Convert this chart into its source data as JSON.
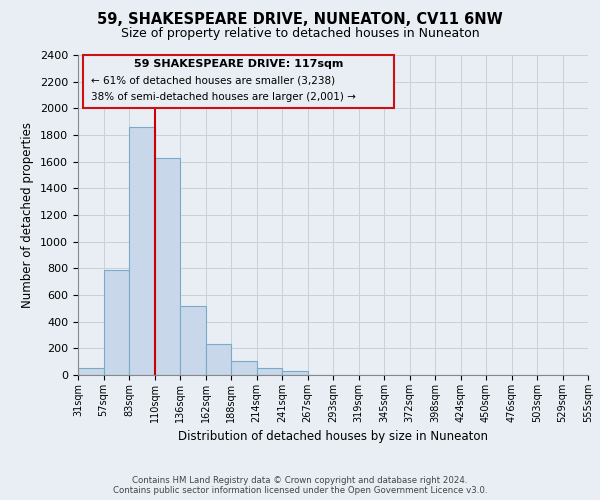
{
  "title": "59, SHAKESPEARE DRIVE, NUNEATON, CV11 6NW",
  "subtitle": "Size of property relative to detached houses in Nuneaton",
  "bar_values": [
    50,
    790,
    1860,
    1630,
    520,
    235,
    105,
    50,
    30,
    0,
    0,
    0,
    0,
    0,
    0,
    0,
    0,
    0,
    0,
    0
  ],
  "bar_labels": [
    "31sqm",
    "57sqm",
    "83sqm",
    "110sqm",
    "136sqm",
    "162sqm",
    "188sqm",
    "214sqm",
    "241sqm",
    "267sqm",
    "293sqm",
    "319sqm",
    "345sqm",
    "372sqm",
    "398sqm",
    "424sqm",
    "450sqm",
    "476sqm",
    "503sqm",
    "529sqm",
    "555sqm"
  ],
  "bar_color": "#c8d8ea",
  "bar_edge_color": "#7aaac8",
  "ylabel": "Number of detached properties",
  "xlabel": "Distribution of detached houses by size in Nuneaton",
  "ylim": [
    0,
    2400
  ],
  "yticks": [
    0,
    200,
    400,
    600,
    800,
    1000,
    1200,
    1400,
    1600,
    1800,
    2000,
    2200,
    2400
  ],
  "vline_x": 3,
  "vline_color": "#cc0000",
  "box_text_line1": "59 SHAKESPEARE DRIVE: 117sqm",
  "box_text_line2": "← 61% of detached houses are smaller (3,238)",
  "box_text_line3": "38% of semi-detached houses are larger (2,001) →",
  "footer_line1": "Contains HM Land Registry data © Crown copyright and database right 2024.",
  "footer_line2": "Contains public sector information licensed under the Open Government Licence v3.0.",
  "background_color": "#e8eef4",
  "plot_background": "#e8eef4",
  "grid_color": "#c8d0d8"
}
